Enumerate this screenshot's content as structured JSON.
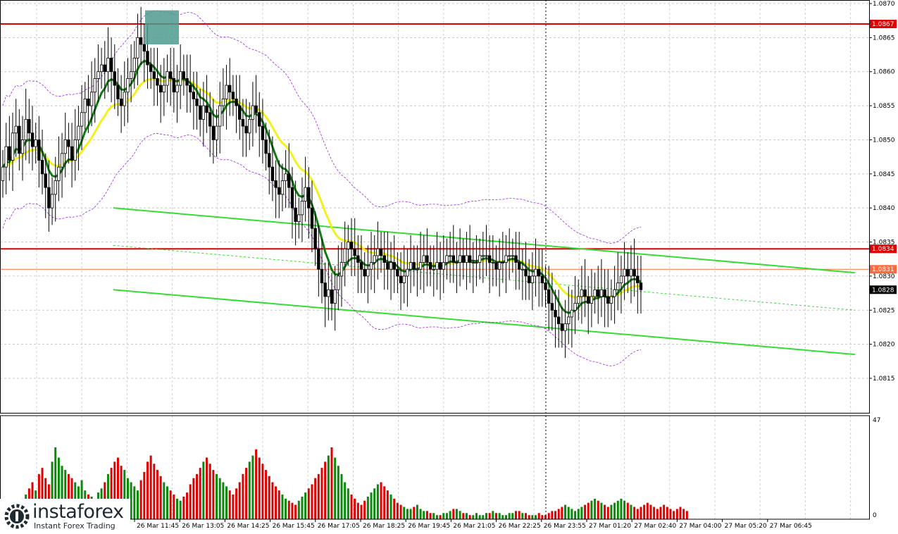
{
  "chart_data": {
    "type": "candlestick",
    "instrument_hint": "",
    "price_axis": {
      "ylim": [
        1.0812,
        1.087
      ],
      "ticks": [
        "1.0870",
        "1.0865",
        "1.0860",
        "1.0855",
        "1.0850",
        "1.0845",
        "1.0840",
        "1.0835",
        "1.0830",
        "1.0825",
        "1.0820",
        "1.0815"
      ]
    },
    "volume_axis": {
      "ylim": [
        0,
        47
      ],
      "ticks": [
        "47",
        "0"
      ]
    },
    "time_labels": [
      "26 Mar 11:45",
      "26 Mar 13:05",
      "26 Mar 14:25",
      "26 Mar 15:45",
      "26 Mar 17:05",
      "26 Mar 18:25",
      "26 Mar 19:45",
      "26 Mar 21:05",
      "26 Mar 22:25",
      "26 Mar 23:55",
      "27 Mar 01:20",
      "27 Mar 02:40",
      "27 Mar 04:00",
      "27 Mar 05:20",
      "27 Mar 06:45"
    ],
    "partial_first_label": "5",
    "horizontal_levels": [
      {
        "price": 1.0867,
        "label": "1.0867",
        "color": "#e00000"
      },
      {
        "price": 1.0834,
        "label": "1.0834",
        "color": "#e00000"
      },
      {
        "price": 1.0831,
        "label": "1.0831",
        "color": "#ff6a3d"
      },
      {
        "price": 1.0828,
        "label": "1.0828",
        "color": "#000000"
      }
    ],
    "channel_lines": {
      "upper": {
        "from": [
          25,
          1.084
        ],
        "to": [
          243,
          1.08305
        ]
      },
      "lower": {
        "from": [
          25,
          1.0828
        ],
        "to": [
          243,
          1.08185
        ]
      },
      "mid_dashed": {
        "from": [
          25,
          1.08345
        ],
        "to": [
          243,
          1.0825
        ]
      }
    },
    "highlight_box": {
      "index_from": 41,
      "index_to": 50,
      "price_from": 1.0864,
      "price_to": 1.0869,
      "color": "#4e9a8f"
    },
    "price_path": [
      1.0846,
      1.0849,
      1.0847,
      1.0851,
      1.0852,
      1.0848,
      1.085,
      1.0853,
      1.0851,
      1.0849,
      1.085,
      1.0847,
      1.0845,
      1.0843,
      1.084,
      1.0842,
      1.0844,
      1.0846,
      1.0848,
      1.085,
      1.0849,
      1.0847,
      1.085,
      1.0852,
      1.0854,
      1.0856,
      1.0855,
      1.0857,
      1.0859,
      1.086,
      1.0861,
      1.086,
      1.0862,
      1.086,
      1.0858,
      1.0856,
      1.0855,
      1.0857,
      1.0859,
      1.086,
      1.0862,
      1.0865,
      1.0864,
      1.0863,
      1.0861,
      1.086,
      1.0859,
      1.0858,
      1.0857,
      1.0858,
      1.086,
      1.0859,
      1.0857,
      1.0858,
      1.086,
      1.0859,
      1.0858,
      1.0857,
      1.0856,
      1.0855,
      1.0853,
      1.0855,
      1.0854,
      1.0852,
      1.085,
      1.0852,
      1.0855,
      1.0856,
      1.0858,
      1.0857,
      1.0856,
      1.0855,
      1.0853,
      1.0852,
      1.0851,
      1.0853,
      1.0855,
      1.0854,
      1.0852,
      1.085,
      1.0848,
      1.0846,
      1.0844,
      1.0843,
      1.0842,
      1.0844,
      1.0845,
      1.0843,
      1.084,
      1.0838,
      1.0839,
      1.0841,
      1.0843,
      1.084,
      1.0837,
      1.0834,
      1.0831,
      1.0829,
      1.0827,
      1.0828,
      1.0826,
      1.0828,
      1.083,
      1.0832,
      1.0834,
      1.0835,
      1.0834,
      1.0833,
      1.0832,
      1.0831,
      1.083,
      1.0831,
      1.0832,
      1.0833,
      1.0834,
      1.0833,
      1.0832,
      1.0831,
      1.0832,
      1.0831,
      1.083,
      1.0829,
      1.083,
      1.0831,
      1.0832,
      1.0831,
      1.0831,
      1.0832,
      1.0833,
      1.0832,
      1.0831,
      1.0831,
      1.0832,
      1.0831,
      1.0832,
      1.0833,
      1.0833,
      1.0832,
      1.0832,
      1.0833,
      1.0832,
      1.0833,
      1.0832,
      1.0832,
      1.0832,
      1.0833,
      1.0833,
      1.0833,
      1.0832,
      1.0832,
      1.0831,
      1.0832,
      1.0832,
      1.0833,
      1.0833,
      1.0833,
      1.0832,
      1.0831,
      1.0831,
      1.083,
      1.0829,
      1.083,
      1.0831,
      1.083,
      1.0829,
      1.0828,
      1.0826,
      1.0825,
      1.0824,
      1.0823,
      1.0822,
      1.0823,
      1.0824,
      1.0825,
      1.0826,
      1.0827,
      1.0828,
      1.0827,
      1.0826,
      1.0827,
      1.0828,
      1.0827,
      1.0828,
      1.0827,
      1.0826,
      1.0827,
      1.0828,
      1.0829,
      1.083,
      1.0831,
      1.083,
      1.0831,
      1.083,
      1.0829,
      1.0828
    ],
    "volume_path": [
      4,
      6,
      5,
      8,
      7,
      9,
      10,
      12,
      15,
      18,
      14,
      22,
      25,
      20,
      17,
      28,
      35,
      30,
      26,
      24,
      22,
      20,
      18,
      16,
      19,
      14,
      12,
      11,
      10,
      13,
      15,
      18,
      22,
      25,
      28,
      30,
      26,
      24,
      20,
      18,
      16,
      14,
      19,
      23,
      28,
      31,
      27,
      24,
      21,
      18,
      16,
      14,
      12,
      10,
      9,
      11,
      13,
      17,
      20,
      22,
      25,
      28,
      30,
      27,
      24,
      22,
      20,
      18,
      16,
      14,
      12,
      15,
      18,
      22,
      25,
      28,
      31,
      34,
      30,
      27,
      24,
      21,
      18,
      16,
      14,
      12,
      10,
      9,
      8,
      7,
      9,
      11,
      13,
      15,
      17,
      20,
      22,
      25,
      28,
      31,
      35,
      30,
      26,
      22,
      18,
      15,
      12,
      10,
      8,
      7,
      9,
      11,
      13,
      15,
      17,
      18,
      16,
      14,
      12,
      10,
      8,
      7,
      6,
      5,
      5,
      6,
      7,
      5,
      4,
      4,
      3,
      3,
      2,
      2,
      3,
      3,
      4,
      5,
      5,
      4,
      3,
      3,
      2,
      2,
      3,
      2,
      2,
      3,
      3,
      4,
      3,
      3,
      2,
      2,
      3,
      3,
      4,
      4,
      3,
      3,
      2,
      2,
      2,
      3,
      2,
      2,
      3,
      4,
      4,
      5,
      6,
      7,
      6,
      5,
      4,
      5,
      6,
      7,
      8,
      9,
      10,
      9,
      8,
      7,
      6,
      7,
      8,
      9,
      10,
      9,
      8,
      7,
      6,
      5,
      6,
      7,
      8,
      7,
      6,
      5,
      6,
      7,
      6,
      5,
      4,
      5,
      6,
      5,
      4
    ]
  }
}
